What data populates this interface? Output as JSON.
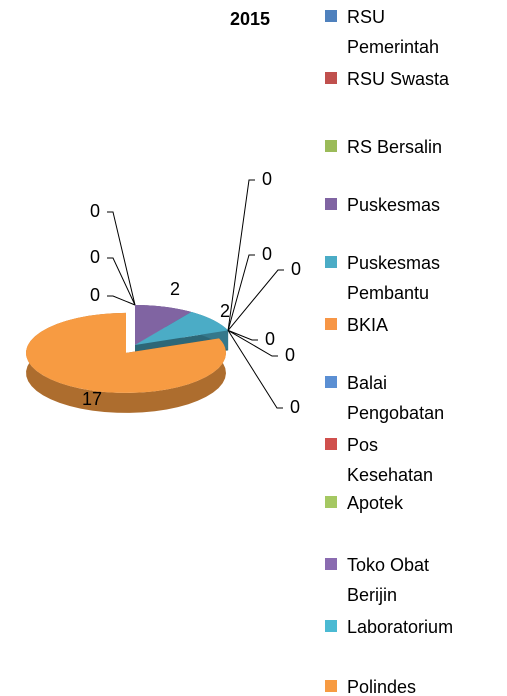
{
  "chart_data": {
    "type": "pie",
    "title": "2015",
    "categories": [
      "RSU Pemerintah",
      "RSU Swasta",
      "RS Bersalin",
      "Puskesmas",
      "Puskesmas Pembantu",
      "BKIA",
      "Balai Pengobatan",
      "Pos Kesehatan",
      "Apotek",
      "Toko Obat Berijin",
      "Laboratorium",
      "Polindes"
    ],
    "values": [
      0,
      0,
      0,
      2,
      2,
      0,
      0,
      0,
      0,
      0,
      0,
      17
    ],
    "colors": [
      "#4f81bd",
      "#c0504d",
      "#9bbb59",
      "#8064a2",
      "#4bacc6",
      "#f79646",
      "#5b8fd3",
      "#d0504d",
      "#a5c862",
      "#8a6bb0",
      "#4bbad3",
      "#f79b42"
    ],
    "legend": "right"
  }
}
